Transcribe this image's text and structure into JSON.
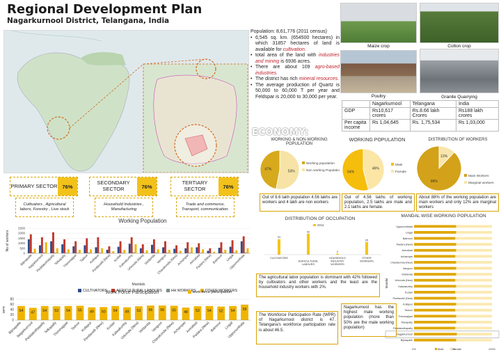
{
  "header": {
    "title": "Regional Development Plan",
    "subtitle": "Nagarkurnool District, Telangana, India"
  },
  "photos": {
    "maize": "Maize crop",
    "cotton": "Cotton crop",
    "poultry": "Poultry",
    "granite": "Granite Quarrying"
  },
  "facts": {
    "population": "Population: 8,61,776 (2011 census)",
    "area": "6,545 sq. km. (654500 hectares) in which 31857 hectares of land is available for ",
    "area_em": "cultivation.",
    "industry_pre": "total area of the land with ",
    "industry_em": "industries and mining",
    "industry_post": " is 6936 acres.",
    "agro_pre": "There are about 109 ",
    "agro_em": "agro-based industries.",
    "mineral_pre": "The district has rich ",
    "mineral_em": "mineral resources.",
    "quartz": "The average production of Quartz is 50,000 to 60,000 T per year and Feldspar is 20,000 to 30,000 per year."
  },
  "stats": {
    "head": [
      "",
      "Nagarkurnool",
      "Telangana",
      "India"
    ],
    "rows": [
      [
        "GDP",
        "Rs10,617 crores",
        "Rs.8.66 lakh Crores",
        "Rs188 lakh crores"
      ],
      [
        "Per capita income",
        "Rs 1,04,645",
        "Rs. 1,75,534",
        "Rs 1,03,000"
      ]
    ]
  },
  "economy": {
    "label": "ECONOMY:"
  },
  "pies": {
    "p1": {
      "title": "WORKING & NON-WORKING POPULATION",
      "a": 47,
      "b": 53,
      "a_label": "47%",
      "b_label": "53%",
      "legend": [
        "Working population",
        "Non working Population"
      ],
      "colors": [
        "#d7a91c",
        "#f6e3a5"
      ]
    },
    "p2": {
      "title": "WORKING POPULATION",
      "a": 54,
      "b": 46,
      "a_label": "54%",
      "b_label": "46%",
      "legend": [
        "Male",
        "Famale"
      ],
      "colors": [
        "#f5bd0c",
        "#fbe6a6"
      ]
    },
    "p3": {
      "title": "DISTRIBUTION OF WORKERS",
      "a": 88,
      "b": 12,
      "a_label": "88%",
      "b_label": "12%",
      "legend": [
        "Main Workers",
        "Marginal workers"
      ],
      "colors": [
        "#d4a21a",
        "#f7e5ac"
      ]
    }
  },
  "notes": {
    "n1": "Out of 8.6 lakh population 4.56 lakhs are workers and 4 lakh are non workers",
    "n2": "Out of 4.56 lakhs of working population, 2.5 lakhs are male and 2.1 lakhs are female.",
    "n3": "About 88% of the working population are main workers and only 12% are marginal workers",
    "n4": "The agricultural labor population is dominant with 42% followed by cultivators and other workers and the least are the household industry workers with 2%.",
    "n5": "The Workforce Participation Rate (WPR) of Nagarkurnool district is 47. Telangana's workforce participation rate is about 46.5.",
    "n6": "Nagarkurnool has the highest male working population (more than 50% are the male working population)"
  },
  "sectors": [
    {
      "name": "PRIMARY SECTOR",
      "pct": "76%",
      "desc": "Cultivators , Agricultural labors, Forestry , Live stock"
    },
    {
      "name": "SECONDARY SECTOR",
      "pct": "76%",
      "desc": "Household Industries , Manufacturing"
    },
    {
      "name": "TERTIARY SECTOR",
      "pct": "76%",
      "desc": "Trade and commerce, Transport, communication."
    }
  ],
  "chart_data": [
    {
      "type": "bar",
      "title": "Working Population",
      "xlabel": "Mandals",
      "ylabel": "No of workers",
      "ylim": [
        0,
        25000
      ],
      "yticks": [
        "0",
        "500",
        "1000",
        "1500",
        "2000",
        "2500"
      ],
      "categories": [
        "Bijinapalle",
        "Nagarkurnool",
        "Peddakothapally",
        "Telkapally",
        "Thimmajipet",
        "Tadoor",
        "Kollapur",
        "Pentlavelli (New)",
        "Kodair",
        "Kalwakurthy",
        "Urkonda (New)",
        "Veldanda",
        "Vangoor",
        "Charakonda (New)",
        "Achampet",
        "Amrabad",
        "Padara (New)",
        "Balmoor",
        "Lingal",
        "Uppununthala"
      ],
      "series": [
        {
          "name": "CULTIVATORS",
          "color": "#2f4b8a",
          "values": [
            14000,
            8000,
            12000,
            9000,
            7000,
            8000,
            6000,
            3500,
            6500,
            9500,
            5000,
            8500,
            6000,
            4500,
            5000,
            6000,
            2500,
            5500,
            6500,
            12000
          ]
        },
        {
          "name": "AGRICULTURAL LABOURS",
          "color": "#c0392b",
          "values": [
            19000,
            16000,
            21000,
            14000,
            12000,
            15000,
            16000,
            7000,
            12000,
            16000,
            9000,
            14000,
            12000,
            8000,
            11000,
            10000,
            5000,
            11000,
            13000,
            17000
          ]
        },
        {
          "name": "HH WORKERS",
          "color": "#7f8c8d",
          "values": [
            900,
            800,
            700,
            600,
            500,
            700,
            600,
            300,
            600,
            900,
            400,
            700,
            600,
            400,
            600,
            500,
            300,
            600,
            600,
            800
          ]
        },
        {
          "name": "OTHER WORKERS",
          "color": "#f0b400",
          "values": [
            4500,
            11000,
            5000,
            4000,
            3500,
            4000,
            5000,
            2000,
            3500,
            9000,
            3000,
            4000,
            3500,
            2500,
            6000,
            4000,
            1500,
            3500,
            3000,
            5000
          ]
        }
      ]
    },
    {
      "type": "bar",
      "title": "Work Force Participation",
      "ylim": [
        0,
        80
      ],
      "yticks": [
        "0",
        "20",
        "40",
        "60",
        "80"
      ],
      "ylabel": "WPR",
      "categories": [
        "Bijinapalle",
        "Nagarkurnool",
        "Peddakothapally",
        "Telkapally",
        "Thimmajipet",
        "Tadoor",
        "Kollapur",
        "Pentlavelli (New)",
        "Kodair",
        "Kalwakurthy",
        "Urkonda (New)",
        "Veldanda",
        "Vangoor",
        "Charakonda (New)",
        "Achampet",
        "Amrabad",
        "Padara (New)",
        "Balmoor",
        "Lingal",
        "Uppununthala"
      ],
      "series": [
        {
          "name": "work force participation",
          "color": "#f0b400",
          "values": [
            54,
            47,
            54,
            53,
            54,
            55,
            49,
            50,
            54,
            49,
            53,
            56,
            56,
            55,
            48,
            53,
            54,
            52,
            54,
            59
          ]
        }
      ]
    },
    {
      "type": "bar",
      "title": "DISTRIBUTION OF OCCUPATION",
      "categories": [
        "CULTIVATORS",
        "AGRICULTURAL LABOURS",
        "HOUSEHOLD INDUSTRY WORKERS",
        "OTHER WORKERS"
      ],
      "series": [
        {
          "name": "2011",
          "color": "#f5c518",
          "values": [
            31,
            42,
            2,
            25
          ]
        }
      ],
      "data_labels": [
        "31",
        "42",
        "2",
        "25"
      ],
      "ylim": [
        0,
        50
      ]
    },
    {
      "type": "bar",
      "title": "MANDAL WISE WORKING POPULATION",
      "ylabel": "Mandal",
      "categories": [
        "Uppununthala",
        "Lingal",
        "Balmoor",
        "Padara (New)",
        "Amrabad",
        "Achampet",
        "Charakonda (New)",
        "Vangoor",
        "Veldanda",
        "Urkonda (New)",
        "Kalwakurthy",
        "Kodair",
        "Pentlavelli (New)",
        "Kollapur",
        "Tadoor",
        "Thimmajipet",
        "Telkapally",
        "Peddakothapally",
        "Nagarkurnool",
        "Bijinapalle"
      ],
      "series": [
        {
          "name": "Male",
          "color": "#e0a800",
          "values": [
            54,
            54,
            53,
            54,
            54,
            53,
            54,
            54,
            54,
            53,
            54,
            53,
            54,
            54,
            53,
            54,
            54,
            53,
            55,
            54
          ]
        },
        {
          "name": "female",
          "color": "#fbe9b0",
          "values": [
            46,
            46,
            47,
            46,
            46,
            47,
            46,
            46,
            46,
            47,
            46,
            47,
            46,
            46,
            47,
            46,
            46,
            47,
            45,
            46
          ]
        }
      ],
      "xticks": [
        "0%",
        "50%",
        "100%"
      ],
      "ylim": [
        0,
        100
      ]
    }
  ]
}
